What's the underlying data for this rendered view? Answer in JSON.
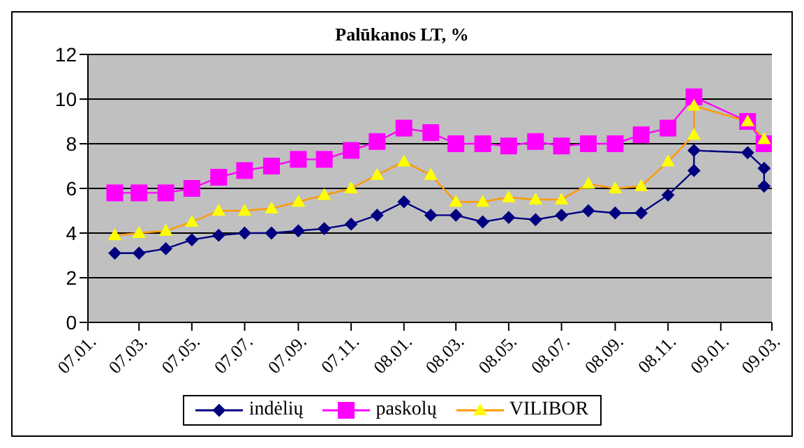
{
  "chart_data": {
    "type": "line",
    "title": "Palūkanos LT, %",
    "x": [
      "2007-02",
      "2007-03",
      "2007-04",
      "2007-05",
      "2007-06",
      "2007-07",
      "2007-08",
      "2007-09",
      "2007-10",
      "2007-11",
      "2007-12",
      "2008-01",
      "2008-02",
      "2008-03",
      "2008-04",
      "2008-05",
      "2008-06",
      "2008-07",
      "2008-08",
      "2008-09",
      "2008-10",
      "2008-11",
      "2008-12",
      "2008-12",
      "2009-02",
      "2009-02-20",
      "2009-02-20"
    ],
    "series": [
      {
        "name": "indėlių",
        "color": "#000080",
        "marker": "diamond",
        "values": [
          3.1,
          3.1,
          3.3,
          3.7,
          3.9,
          4.0,
          4.0,
          4.1,
          4.2,
          4.4,
          4.8,
          5.4,
          4.8,
          4.8,
          4.5,
          4.7,
          4.6,
          4.8,
          5.0,
          4.9,
          4.9,
          5.7,
          6.8,
          7.7,
          7.6,
          6.9,
          6.1
        ]
      },
      {
        "name": "paskolų",
        "color": "#ff00ff",
        "marker": "square",
        "x": [
          "2007-02",
          "2007-03",
          "2007-04",
          "2007-05",
          "2007-06",
          "2007-07",
          "2007-08",
          "2007-09",
          "2007-10",
          "2007-11",
          "2007-12",
          "2008-01",
          "2008-02",
          "2008-03",
          "2008-04",
          "2008-05",
          "2008-06",
          "2008-07",
          "2008-08",
          "2008-09",
          "2008-10",
          "2008-11",
          "2008-12",
          "2009-02",
          "2009-02-20"
        ],
        "values": [
          5.8,
          5.8,
          5.8,
          6.0,
          6.5,
          6.8,
          7.0,
          7.3,
          7.3,
          7.7,
          8.1,
          8.7,
          8.5,
          8.0,
          8.0,
          7.9,
          8.1,
          7.9,
          8.0,
          8.0,
          8.4,
          8.7,
          10.1,
          9.0,
          8.0
        ]
      },
      {
        "name": "VILIBOR",
        "color": "#ff9900",
        "marker": "triangle",
        "x": [
          "2007-02",
          "2007-03",
          "2007-04",
          "2007-05",
          "2007-06",
          "2007-07",
          "2007-08",
          "2007-09",
          "2007-10",
          "2007-11",
          "2007-12",
          "2008-01",
          "2008-02",
          "2008-03",
          "2008-04",
          "2008-05",
          "2008-06",
          "2008-07",
          "2008-08",
          "2008-09",
          "2008-10",
          "2008-11",
          "2008-12",
          "2008-12",
          "2009-02",
          "2009-02-20"
        ],
        "values": [
          3.9,
          4.0,
          4.1,
          4.5,
          5.0,
          5.0,
          5.1,
          5.4,
          5.7,
          6.0,
          6.6,
          7.2,
          6.6,
          5.4,
          5.4,
          5.6,
          5.5,
          5.5,
          6.2,
          6.0,
          6.1,
          7.2,
          8.4,
          9.7,
          9.0,
          8.2
        ]
      }
    ],
    "xlim": [
      "2007-01",
      "2009-03"
    ],
    "xticks": [
      {
        "value": "2007-01",
        "label": "07.01."
      },
      {
        "value": "2007-03",
        "label": "07.03."
      },
      {
        "value": "2007-05",
        "label": "07.05."
      },
      {
        "value": "2007-07",
        "label": "07.07."
      },
      {
        "value": "2007-09",
        "label": "07.09."
      },
      {
        "value": "2007-11",
        "label": "07.11."
      },
      {
        "value": "2008-01",
        "label": "08.01."
      },
      {
        "value": "2008-03",
        "label": "08.03."
      },
      {
        "value": "2008-05",
        "label": "08.05."
      },
      {
        "value": "2008-07",
        "label": "08.07."
      },
      {
        "value": "2008-09",
        "label": "08.09."
      },
      {
        "value": "2008-11",
        "label": "08.11."
      },
      {
        "value": "2009-01",
        "label": "09.01."
      },
      {
        "value": "2009-03",
        "label": "09.03."
      }
    ],
    "ylim": [
      0,
      12
    ],
    "yticks": [
      0,
      2,
      4,
      6,
      8,
      10,
      12
    ],
    "grid": "y",
    "legend": "bottom"
  }
}
